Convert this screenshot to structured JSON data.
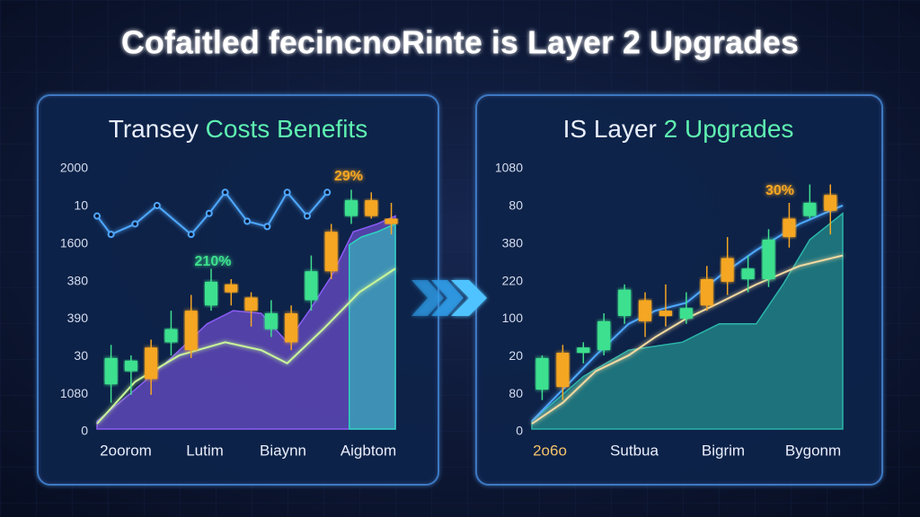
{
  "title": "Cofaitled fecincnoRinte is Layer 2 Upgrades",
  "chart_data": [
    {
      "type": "candlestick",
      "title": "Transey",
      "title_highlight": "Costs Benefits",
      "y_labels": [
        "2000",
        "10",
        "1600",
        "380",
        "390",
        "30",
        "1080",
        "0"
      ],
      "x_labels": [
        "2oorom",
        "Lutim",
        "Biaynn",
        "Aigbtom"
      ],
      "annotations": [
        "210%",
        "29%"
      ],
      "ylim": [
        0,
        100
      ],
      "xlim": [
        0.3,
        15.2
      ],
      "up_color": "#3ee08f",
      "down_color": "#f5a623",
      "candles": {
        "open": [
          17,
          22,
          31,
          33,
          45,
          47,
          55,
          50,
          38,
          44,
          49,
          75,
          81,
          87,
          80
        ],
        "high": [
          32,
          28,
          34,
          45,
          51,
          61,
          57,
          52,
          49,
          47,
          66,
          78,
          91,
          90,
          86
        ],
        "low": [
          10,
          13,
          13,
          28,
          27,
          45,
          47,
          39,
          35,
          30,
          45,
          57,
          78,
          80,
          74
        ],
        "close": [
          27,
          26,
          19,
          38,
          30,
          56,
          52,
          45,
          44,
          33,
          60,
          60,
          87,
          81,
          78
        ]
      },
      "areas": [
        {
          "color": "#8b5cf6",
          "x": [
            0.3,
            2.2,
            4,
            5.8,
            7.1,
            8.5,
            9.8,
            10.9,
            12,
            13.1,
            14.3,
            15.2
          ],
          "values": [
            3,
            15,
            27,
            40,
            45,
            44,
            33,
            45,
            58,
            75,
            78,
            81
          ]
        },
        {
          "color": "#2dd4bf",
          "x": [
            12.9,
            13.5,
            14.3,
            15.2
          ],
          "values": [
            70,
            73,
            75,
            78
          ]
        }
      ],
      "lines": [
        {
          "color": "#4fa8ff",
          "markers": true,
          "x": [
            0.3,
            1,
            2.2,
            3.3,
            5,
            5.9,
            6.7,
            7.8,
            8.8,
            9.8,
            10.8,
            11.8
          ],
          "values": [
            81,
            74,
            78,
            85,
            74,
            82,
            90,
            79,
            77,
            90,
            81,
            90
          ]
        },
        {
          "color": "#c8f59a",
          "markers": false,
          "x": [
            0.3,
            2.2,
            4.4,
            6.7,
            8.5,
            9.8,
            11.6,
            13.4,
            15.2
          ],
          "values": [
            2,
            18,
            28,
            33,
            30,
            25,
            38,
            52,
            61
          ]
        }
      ]
    },
    {
      "type": "candlestick",
      "title": "IS Layer",
      "title_highlight": "2 Upgrades",
      "y_labels": [
        "1080",
        "80",
        "380",
        "220",
        "100",
        "20",
        "80",
        "0"
      ],
      "x_labels": [
        "2o6o",
        "Sutbua",
        "Bigrim",
        "Bygonm"
      ],
      "annotations": [
        "30%"
      ],
      "ylim": [
        0,
        100
      ],
      "xlim": [
        0.5,
        15.6
      ],
      "up_color": "#3ee08f",
      "down_color": "#f5a623",
      "candles": {
        "open": [
          15,
          29,
          29,
          30,
          43,
          49,
          45,
          42,
          57,
          65,
          57,
          57,
          80,
          81,
          89
        ],
        "high": [
          28,
          32,
          33,
          44,
          55,
          52,
          55,
          52,
          62,
          73,
          66,
          76,
          86,
          93,
          93
        ],
        "low": [
          11,
          11,
          25,
          28,
          40,
          35,
          39,
          40,
          45,
          51,
          52,
          54,
          69,
          80,
          74
        ],
        "close": [
          27,
          16,
          31,
          41,
          53,
          41,
          43,
          46,
          47,
          56,
          61,
          72,
          73,
          86,
          83
        ]
      },
      "areas": [
        {
          "color": "#2bb5a8",
          "x": [
            0.5,
            3,
            5.2,
            7.8,
            9.6,
            11.4,
            12.7,
            14,
            15.6
          ],
          "values": [
            3,
            20,
            30,
            33,
            40,
            40,
            55,
            72,
            82
          ]
        }
      ],
      "lines": [
        {
          "color": "#4fa8ff",
          "markers": false,
          "x": [
            0.5,
            2,
            3.6,
            5.2,
            6.5,
            8,
            9.6,
            11.4,
            13.5,
            15.6
          ],
          "values": [
            3,
            15,
            28,
            40,
            45,
            48,
            58,
            68,
            78,
            85
          ]
        },
        {
          "color": "#f3d9a0",
          "markers": false,
          "x": [
            0.5,
            2,
            3.6,
            5.2,
            6.5,
            8,
            9.6,
            11.4,
            13.5,
            15.6
          ],
          "values": [
            2,
            10,
            22,
            28,
            35,
            42,
            48,
            55,
            62,
            66
          ]
        }
      ]
    }
  ]
}
